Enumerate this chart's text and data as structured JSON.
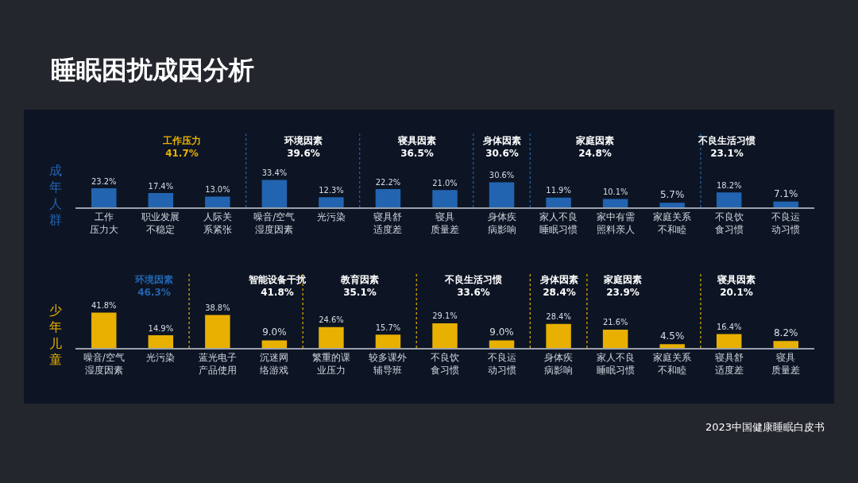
{
  "chart_data": [
    {
      "type": "bar",
      "title": "工作压力\n41.7%",
      "ylabel": "成年人群",
      "annotations": [
        "睡眠困扰成因分析"
      ],
      "categories": [
        "工作压力大",
        "职业发展不稳定",
        "人际关系紧张"
      ],
      "series": [
        {
          "color": "#2264b0",
          "values": [
            23.2,
            17.4,
            13.0
          ],
          "value_labels": [
            "23.2%",
            "17.4%",
            "13.0%"
          ]
        }
      ]
    },
    {
      "type": "bar",
      "title": "环境因素\n39.6%",
      "categories": [
        "噪音/空气湿度因素",
        "光污染"
      ],
      "series": [
        {
          "color": "#2264b0",
          "values": [
            33.4,
            12.3
          ],
          "value_labels": [
            "33.4%",
            "12.3%"
          ]
        }
      ]
    },
    {
      "type": "bar",
      "title": "寝具因素\n36.5%",
      "categories": [
        "寝具舒适度差",
        "寝具质量差"
      ],
      "series": [
        {
          "color": "#2264b0",
          "values": [
            22.2,
            21.0
          ],
          "value_labels": [
            "22.2%",
            "21.0%"
          ]
        }
      ]
    },
    {
      "type": "bar",
      "title": "身体因素\n30.6%",
      "categories": [
        "身体疾病影响"
      ],
      "series": [
        {
          "color": "#2264b0",
          "values": [
            30.6
          ],
          "value_labels": [
            "30.6%"
          ]
        }
      ]
    },
    {
      "type": "bar",
      "title": "家庭因素\n24.8%",
      "categories": [
        "家人不良睡眠习惯",
        "家中有需照料亲人",
        "家庭关系不和睦"
      ],
      "series": [
        {
          "color": "#2264b0",
          "values": [
            11.9,
            10.1,
            5.7
          ],
          "value_labels": [
            "11.9%",
            "10.1%",
            "5.7%"
          ]
        }
      ]
    },
    {
      "type": "bar",
      "title": "不良生活习惯\n23.1%",
      "categories": [
        "不良饮食习惯",
        "不良运动习惯"
      ],
      "series": [
        {
          "color": "#2264b0",
          "values": [
            18.2,
            7.1
          ],
          "value_labels": [
            "18.2%",
            "7.1%"
          ]
        }
      ]
    },
    {
      "type": "bar",
      "title": "环境因素\n46.3%",
      "ylabel": "少年儿童",
      "categories": [
        "噪音/空气湿度因素",
        "光污染"
      ],
      "series": [
        {
          "color": "#e8b000",
          "values": [
            41.8,
            14.9
          ],
          "value_labels": [
            "41.8%",
            "14.9%"
          ]
        }
      ]
    },
    {
      "type": "bar",
      "title": "智能设备干扰\n41.8%",
      "categories": [
        "蓝光电子产品使用",
        "沉迷网络游戏"
      ],
      "series": [
        {
          "color": "#e8b000",
          "values": [
            38.8,
            9.0
          ],
          "value_labels": [
            "38.8%",
            "9.0%"
          ]
        }
      ]
    },
    {
      "type": "bar",
      "title": "教育因素\n35.1%",
      "categories": [
        "繁重的课业压力",
        "较多课外辅导班"
      ],
      "series": [
        {
          "color": "#e8b000",
          "values": [
            24.6,
            15.7
          ],
          "value_labels": [
            "24.6%",
            "15.7%"
          ]
        }
      ]
    },
    {
      "type": "bar",
      "title": "不良生活习惯\n33.6%",
      "categories": [
        "不良饮食习惯",
        "不良运动习惯"
      ],
      "series": [
        {
          "color": "#e8b000",
          "values": [
            29.1,
            9.0
          ],
          "value_labels": [
            "29.1%",
            "9.0%"
          ]
        }
      ]
    },
    {
      "type": "bar",
      "title": "身体因素\n28.4%",
      "categories": [
        "身体疾病影响"
      ],
      "series": [
        {
          "color": "#e8b000",
          "values": [
            28.4
          ],
          "value_labels": [
            "28.4%"
          ]
        }
      ]
    },
    {
      "type": "bar",
      "title": "家庭因素\n23.9%",
      "categories": [
        "家人不良睡眠习惯",
        "家庭关系不和睦"
      ],
      "series": [
        {
          "color": "#e8b000",
          "values": [
            21.6,
            4.5
          ],
          "value_labels": [
            "21.6%",
            "4.5%"
          ]
        }
      ]
    },
    {
      "type": "bar",
      "title": "寝具因素\n20.1%",
      "categories": [
        "寝具舒适度差",
        "寝具质量差"
      ],
      "annotations": [
        "2023中国健康睡眠白皮书"
      ],
      "series": [
        {
          "color": "#e8b000",
          "values": [
            16.4,
            8.2
          ],
          "value_labels": [
            "16.4%",
            "8.2%"
          ]
        }
      ]
    }
  ]
}
